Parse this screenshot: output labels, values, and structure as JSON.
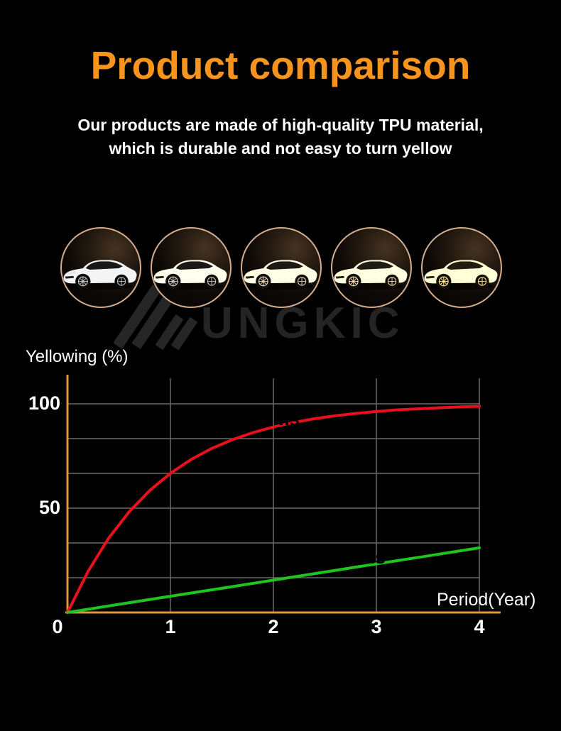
{
  "page": {
    "title": "Product comparison",
    "subtitle_line1": "Our products are made of high-quality TPU material,",
    "subtitle_line2": "which is durable and not easy to turn yellow",
    "watermark": "UNGKIC"
  },
  "colors": {
    "title_orange": "#f7941d",
    "axis_orange": "#e2953b",
    "grid_gray": "#6a6a6a",
    "red_series": "#e8101c",
    "green_series": "#1fc41f",
    "circle_ring": "#d4ad8e",
    "watermark_gray": "#242424",
    "background": "#000000",
    "text_white": "#ffffff"
  },
  "car_row": {
    "description": "five circular photos of the same white car turning progressively more yellow",
    "items": [
      {
        "stage": 1,
        "sepia": 0
      },
      {
        "stage": 2,
        "sepia": 0.25
      },
      {
        "stage": 3,
        "sepia": 0.5
      },
      {
        "stage": 4,
        "sepia": 0.7
      },
      {
        "stage": 5,
        "sepia": 0.95
      }
    ]
  },
  "chart_data": {
    "type": "line",
    "title": "",
    "xlabel": "Period(Year)",
    "ylabel": "Yellowing (%)",
    "xlim": [
      0,
      4
    ],
    "ylim": [
      0,
      112
    ],
    "x_ticks": [
      0,
      1,
      2,
      3,
      4
    ],
    "y_ticks": [
      100,
      50
    ],
    "y_grid_divisions": 6,
    "grid": true,
    "legend_position": "inline-labels",
    "series": [
      {
        "name": "General Films",
        "color": "#e8101c",
        "points": [
          [
            0,
            0
          ],
          [
            0.2,
            19.7
          ],
          [
            0.4,
            35.6
          ],
          [
            0.6,
            48.3
          ],
          [
            0.8,
            58.5
          ],
          [
            1,
            66.7
          ],
          [
            1.2,
            73.3
          ],
          [
            1.4,
            78.6
          ],
          [
            1.6,
            82.8
          ],
          [
            1.8,
            86.2
          ],
          [
            2,
            88.9
          ],
          [
            2.2,
            91.1
          ],
          [
            2.4,
            92.9
          ],
          [
            2.6,
            94.3
          ],
          [
            2.8,
            95.4
          ],
          [
            3,
            96.3
          ],
          [
            3.2,
            97.1
          ],
          [
            3.4,
            97.6
          ],
          [
            3.6,
            98.1
          ],
          [
            3.8,
            98.5
          ],
          [
            4,
            98.8
          ]
        ]
      },
      {
        "name": "Low-Yellowing Films",
        "color": "#1fc41f",
        "points": [
          [
            0,
            0
          ],
          [
            0.5,
            3.9
          ],
          [
            1,
            7.8
          ],
          [
            1.5,
            11.6
          ],
          [
            2,
            15.5
          ],
          [
            2.5,
            19.4
          ],
          [
            3,
            23.3
          ],
          [
            3.5,
            27.1
          ],
          [
            4,
            31
          ]
        ]
      }
    ]
  }
}
